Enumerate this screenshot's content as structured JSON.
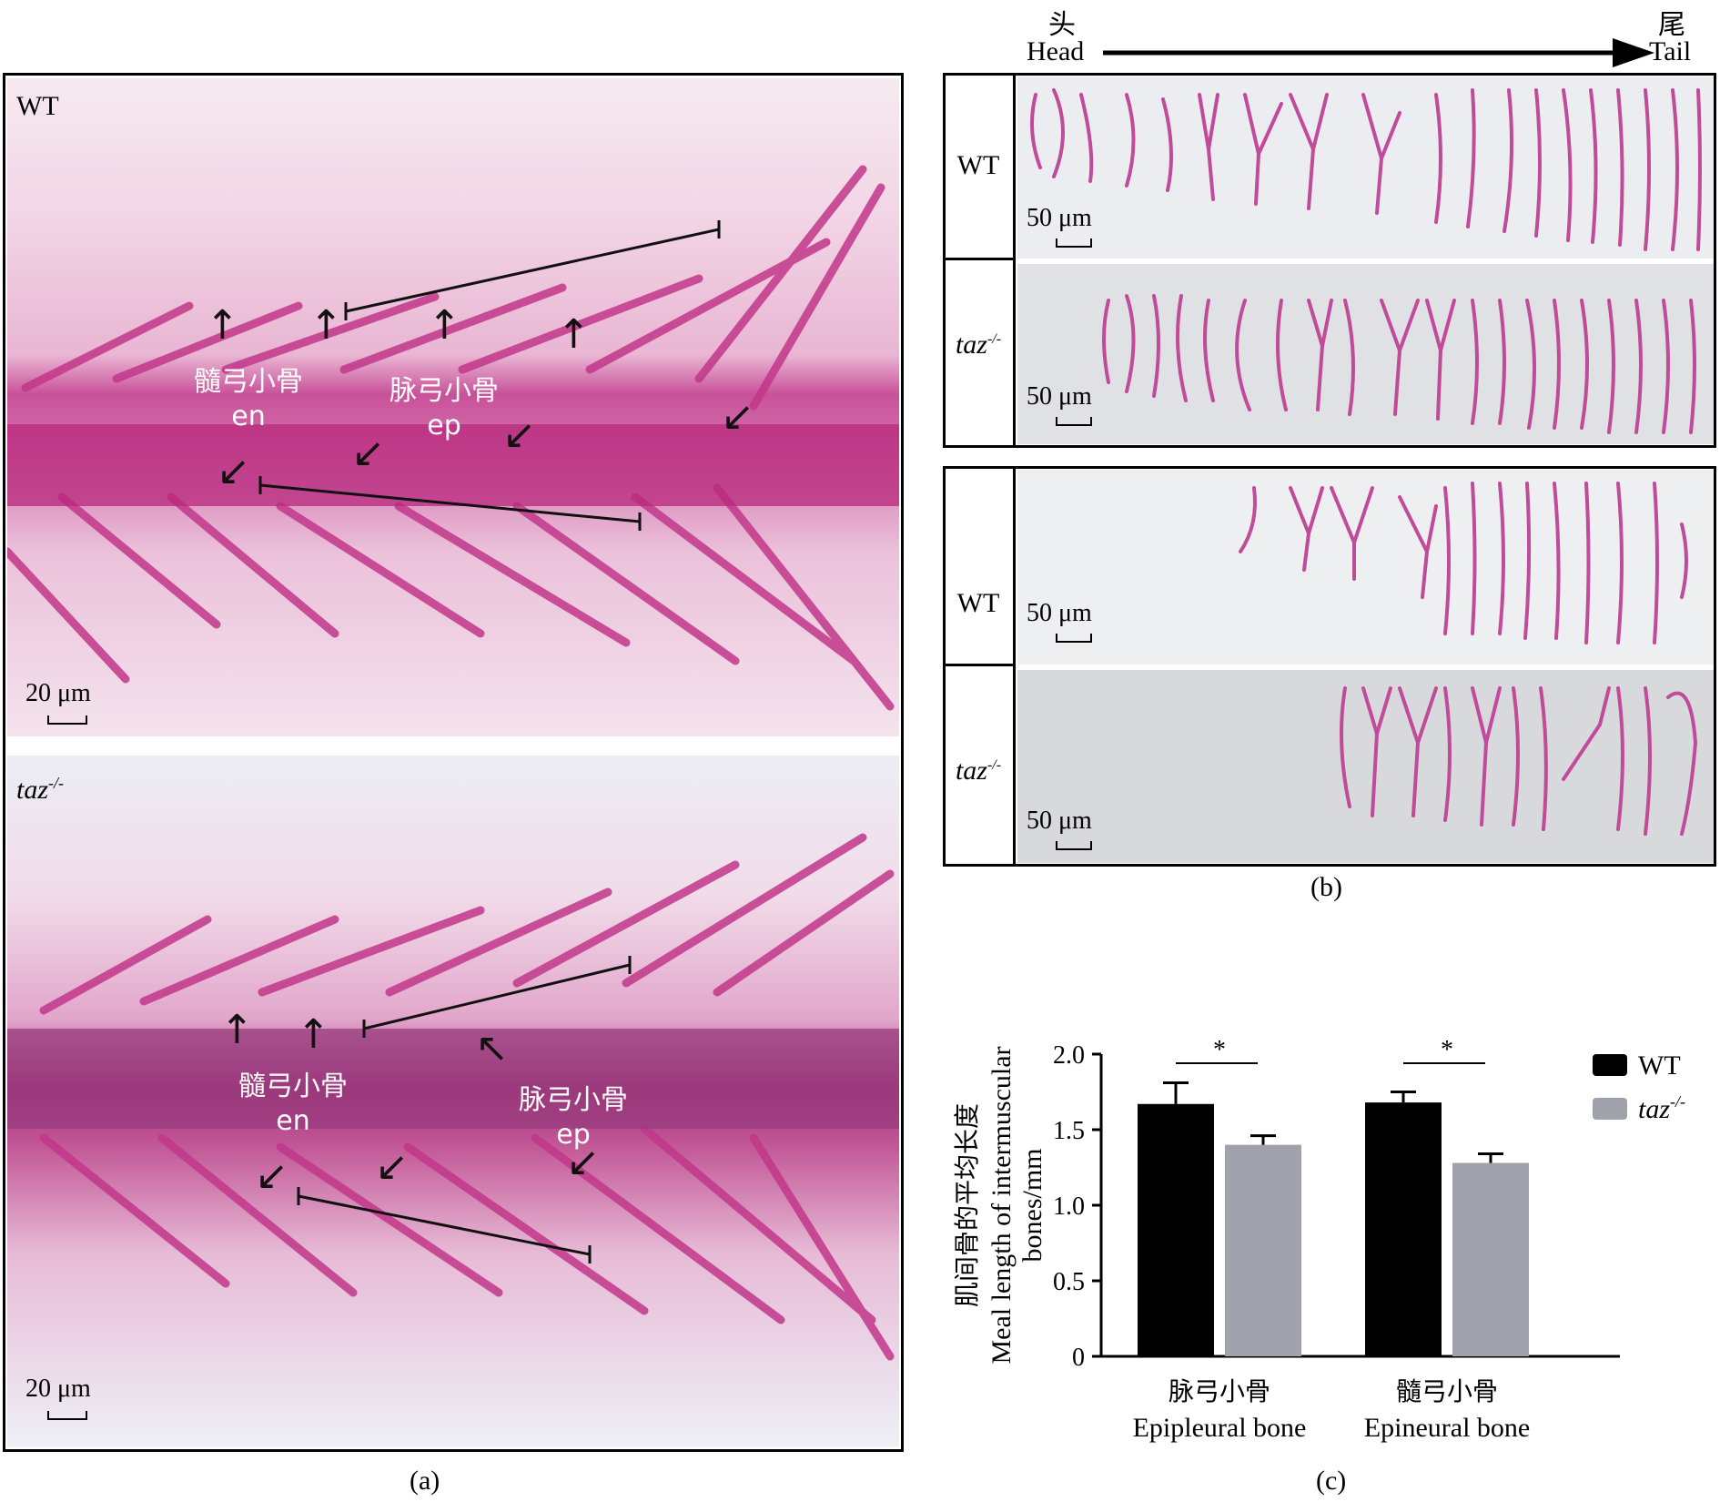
{
  "panel_a": {
    "caption": "(a)",
    "top": {
      "genotype": "WT",
      "scale": "20 μm",
      "label_en_cn": "髓弓小骨",
      "label_en": "en",
      "label_ep_cn": "脉弓小骨",
      "label_ep": "ep"
    },
    "bottom": {
      "genotype": "taz",
      "genotype_sup": "-/-",
      "scale": "20 μm",
      "label_en_cn": "髓弓小骨",
      "label_en": "en",
      "label_ep_cn": "脉弓小骨",
      "label_ep": "ep"
    }
  },
  "panel_b": {
    "caption": "(b)",
    "head_cn": "头",
    "head_en": "Head",
    "tail_cn": "尾",
    "tail_en": "Tail",
    "rows": [
      {
        "genotype": "WT",
        "sup": "",
        "scale": "50 μm"
      },
      {
        "genotype": "taz",
        "sup": "-/-",
        "scale": "50 μm"
      },
      {
        "genotype": "WT",
        "sup": "",
        "scale": "50 μm"
      },
      {
        "genotype": "taz",
        "sup": "-/-",
        "scale": "50 μm"
      }
    ]
  },
  "panel_c": {
    "caption": "(c)",
    "chart_data": {
      "type": "bar",
      "ylabel_cn": "肌间骨的平均长度",
      "ylabel_en_1": "Meal length of intermuscular",
      "ylabel_en_2": "bones/mm",
      "ylim": [
        0,
        2.0
      ],
      "yticks": [
        "0",
        "0.5",
        "1.0",
        "1.5",
        "2.0"
      ],
      "categories": [
        {
          "cn": "脉弓小骨",
          "en": "Epipleural bone"
        },
        {
          "cn": "髓弓小骨",
          "en": "Epineural bone"
        }
      ],
      "series": [
        {
          "name": "WT",
          "color": "#000000",
          "values": [
            1.67,
            1.68
          ],
          "errors": [
            0.14,
            0.07
          ]
        },
        {
          "name": "taz",
          "name_sup": "-/-",
          "color": "#a0a2ab",
          "values": [
            1.4,
            1.28
          ],
          "errors": [
            0.06,
            0.06
          ]
        }
      ],
      "significance": [
        "*",
        "*"
      ],
      "legend": "top-right"
    }
  }
}
